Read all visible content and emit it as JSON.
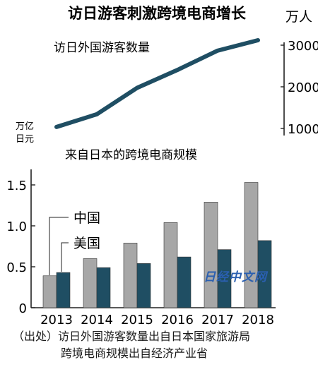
{
  "title": "访日游客刺激跨境电商增长",
  "watermark": "日经中文网",
  "source": {
    "line1": "（出处）访日外国游客数量出自日本国家旅游局",
    "line2": "跨境电商规模出自经济产业省"
  },
  "colors": {
    "line": "#1f4e63",
    "bar_china": "#a7a7a7",
    "bar_usa": "#1f4e63",
    "axis": "#222222",
    "watermark": "#2a5fb0"
  },
  "chart_data": [
    {
      "type": "line",
      "title": "访日外国游客数量",
      "ylabel": "万人",
      "y_axis_side": "right",
      "y_ticks": [
        1000,
        2000,
        3000
      ],
      "ylim": [
        1000,
        3000
      ],
      "x": [
        2013,
        2014,
        2015,
        2016,
        2017,
        2018
      ],
      "series": [
        {
          "values": [
            1036,
            1341,
            1974,
            2404,
            2869,
            3119
          ]
        }
      ]
    },
    {
      "type": "bar",
      "title": "来自日本的跨境电商规模",
      "ylabel": "万亿日元",
      "ylabel_lines": [
        "万亿",
        "日元"
      ],
      "y_ticks": [
        "0",
        "0.5",
        "1.0",
        "1.5"
      ],
      "ylim": [
        0,
        1.6
      ],
      "categories": [
        "2013",
        "2014",
        "2015",
        "2016",
        "2017",
        "2018"
      ],
      "series": [
        {
          "name": "中国",
          "values": [
            0.39,
            0.6,
            0.79,
            1.04,
            1.29,
            1.53
          ]
        },
        {
          "name": "美国",
          "values": [
            0.43,
            0.49,
            0.54,
            0.62,
            0.71,
            0.82
          ]
        }
      ]
    }
  ]
}
